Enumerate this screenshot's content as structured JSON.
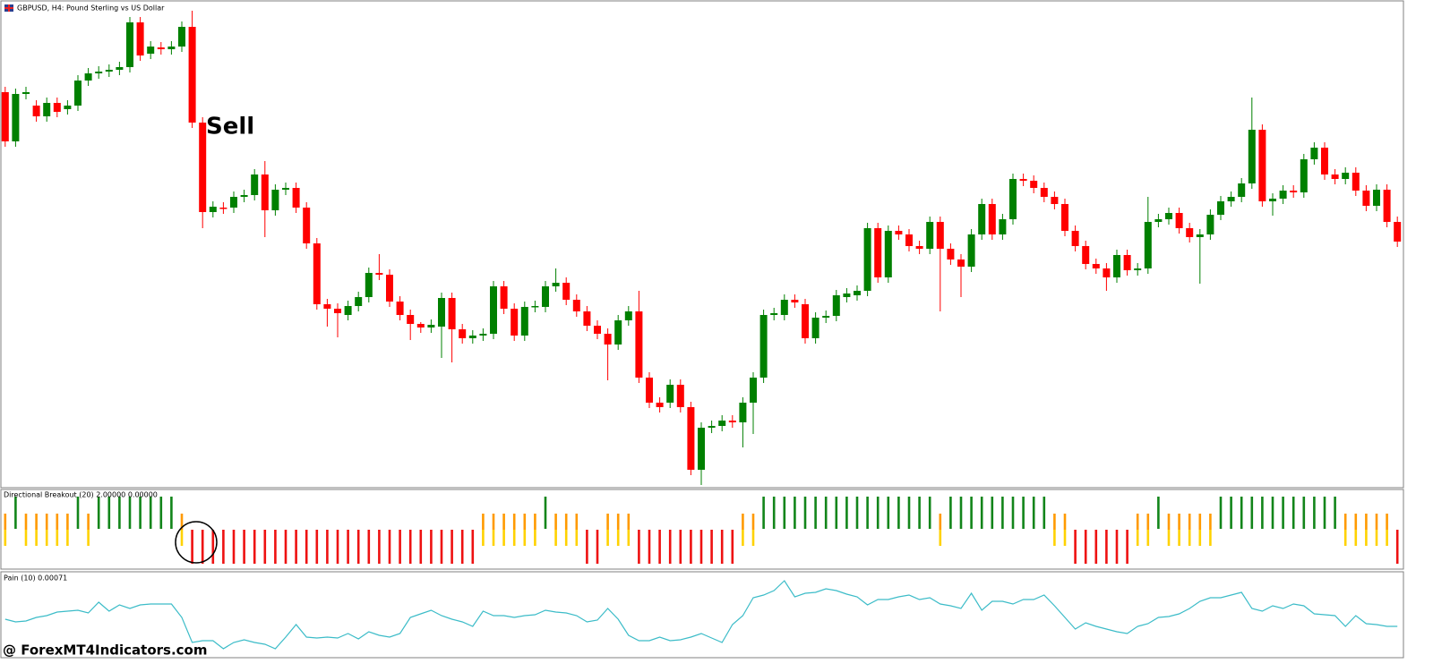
{
  "chart_data": [
    {
      "type": "candlestick",
      "title": "GBPUSD, H4:  Pound Sterling vs US Dollar",
      "annotation": "Sell",
      "up_color": "#008000",
      "down_color": "#ff0000",
      "ylim": [
        0,
        543
      ],
      "open": [
        442,
        387,
        440,
        427,
        415,
        430,
        423,
        427,
        455,
        463,
        465,
        467,
        470,
        520,
        485,
        492,
        490,
        493,
        515,
        408,
        308,
        313,
        313,
        325,
        327,
        350,
        310,
        333,
        335,
        313,
        273,
        205,
        200,
        193,
        203,
        213,
        240,
        238,
        208,
        193,
        183,
        179,
        180,
        212,
        177,
        167,
        170,
        172,
        225,
        200,
        170,
        202,
        202,
        225,
        229,
        210,
        197,
        181,
        172,
        160,
        187,
        197,
        123,
        95,
        95,
        115,
        90,
        20,
        67,
        69,
        75,
        73,
        95,
        123,
        193,
        193,
        210,
        205,
        167,
        190,
        192,
        213,
        215,
        220,
        290,
        235,
        287,
        283,
        270,
        267,
        297,
        267,
        255,
        247,
        283,
        317,
        283,
        300,
        345,
        343,
        335,
        325,
        317,
        287,
        270,
        250,
        245,
        235,
        260,
        243,
        245,
        297,
        300,
        307,
        290,
        280,
        283,
        305,
        320,
        325,
        340,
        400,
        320,
        323,
        332,
        330,
        367,
        380,
        350,
        345,
        352,
        332,
        315,
        333,
        297
      ],
      "high": [
        448,
        446,
        448,
        433,
        436,
        436,
        433,
        461,
        469,
        471,
        473,
        476,
        526,
        526,
        499,
        498,
        499,
        521,
        533,
        414,
        320,
        319,
        331,
        333,
        356,
        365,
        339,
        341,
        341,
        319,
        279,
        211,
        206,
        209,
        219,
        246,
        261,
        244,
        214,
        199,
        185,
        188,
        218,
        218,
        183,
        176,
        178,
        231,
        231,
        206,
        208,
        209,
        231,
        245,
        235,
        216,
        203,
        187,
        178,
        193,
        203,
        220,
        129,
        101,
        121,
        121,
        96,
        73,
        75,
        81,
        81,
        101,
        129,
        199,
        201,
        216,
        216,
        211,
        196,
        198,
        221,
        223,
        226,
        296,
        296,
        293,
        293,
        289,
        276,
        303,
        303,
        273,
        261,
        289,
        323,
        323,
        306,
        351,
        351,
        349,
        341,
        331,
        323,
        293,
        276,
        256,
        251,
        266,
        266,
        251,
        325,
        306,
        313,
        313,
        296,
        289,
        311,
        326,
        331,
        346,
        436,
        406,
        329,
        338,
        338,
        373,
        386,
        386,
        356,
        358,
        358,
        338,
        339,
        339,
        303
      ],
      "low": [
        381,
        381,
        434,
        409,
        409,
        414,
        417,
        421,
        449,
        457,
        459,
        461,
        464,
        477,
        479,
        484,
        484,
        487,
        402,
        290,
        302,
        306,
        307,
        319,
        321,
        280,
        304,
        327,
        307,
        267,
        199,
        180,
        168,
        187,
        197,
        207,
        232,
        202,
        187,
        165,
        173,
        173,
        145,
        140,
        161,
        161,
        164,
        166,
        194,
        164,
        164,
        196,
        196,
        219,
        204,
        191,
        175,
        166,
        120,
        154,
        181,
        117,
        89,
        84,
        89,
        84,
        14,
        3,
        61,
        63,
        67,
        45,
        60,
        117,
        187,
        187,
        201,
        161,
        161,
        184,
        186,
        207,
        209,
        214,
        229,
        229,
        277,
        264,
        261,
        261,
        197,
        249,
        213,
        241,
        277,
        277,
        277,
        294,
        337,
        329,
        319,
        311,
        281,
        264,
        244,
        239,
        220,
        229,
        237,
        237,
        239,
        291,
        294,
        284,
        274,
        228,
        277,
        299,
        314,
        319,
        334,
        314,
        304,
        317,
        324,
        324,
        361,
        344,
        339,
        339,
        326,
        309,
        309,
        291,
        269
      ],
      "close": [
        387,
        440,
        442,
        415,
        430,
        420,
        427,
        455,
        463,
        465,
        467,
        470,
        520,
        483,
        493,
        490,
        493,
        515,
        408,
        308,
        314,
        312,
        325,
        327,
        350,
        310,
        333,
        335,
        313,
        273,
        205,
        200,
        195,
        203,
        213,
        240,
        238,
        208,
        193,
        183,
        179,
        182,
        212,
        177,
        167,
        170,
        172,
        225,
        200,
        170,
        202,
        203,
        225,
        229,
        210,
        197,
        181,
        172,
        160,
        187,
        197,
        123,
        95,
        90,
        115,
        90,
        20,
        67,
        69,
        75,
        73,
        95,
        123,
        193,
        195,
        210,
        207,
        167,
        190,
        192,
        215,
        217,
        220,
        290,
        235,
        287,
        283,
        270,
        267,
        297,
        267,
        255,
        247,
        283,
        317,
        283,
        300,
        345,
        343,
        335,
        325,
        317,
        287,
        270,
        250,
        245,
        235,
        260,
        243,
        245,
        297,
        300,
        307,
        290,
        280,
        283,
        305,
        320,
        325,
        340,
        400,
        320,
        323,
        332,
        330,
        367,
        380,
        350,
        345,
        352,
        332,
        315,
        333,
        297,
        275
      ]
    },
    {
      "type": "state_histogram",
      "title": "Directional Breakout (20) 2.00000 0.00000",
      "up_color": "#12851a",
      "neutral_colors": [
        "#ff9a00",
        "#ffd200"
      ],
      "down_color": "#ee1111",
      "values": [
        0,
        1,
        0,
        0,
        0,
        0,
        0,
        1,
        0,
        1,
        1,
        1,
        1,
        1,
        1,
        1,
        1,
        0,
        -1,
        -1,
        -1,
        -1,
        -1,
        -1,
        -1,
        -1,
        -1,
        -1,
        -1,
        -1,
        -1,
        -1,
        -1,
        -1,
        -1,
        -1,
        -1,
        -1,
        -1,
        -1,
        -1,
        -1,
        -1,
        -1,
        -1,
        -1,
        0,
        0,
        0,
        0,
        0,
        0,
        1,
        0,
        0,
        0,
        -1,
        -1,
        0,
        0,
        0,
        -1,
        -1,
        -1,
        -1,
        -1,
        -1,
        -1,
        -1,
        -1,
        -1,
        0,
        0,
        1,
        1,
        1,
        1,
        1,
        1,
        1,
        1,
        1,
        1,
        1,
        1,
        1,
        1,
        1,
        1,
        1,
        0,
        1,
        1,
        1,
        1,
        1,
        1,
        1,
        1,
        1,
        1,
        0,
        0,
        -1,
        -1,
        -1,
        -1,
        -1,
        -1,
        0,
        0,
        1,
        0,
        0,
        0,
        0,
        0,
        1,
        1,
        1,
        1,
        1,
        1,
        1,
        1,
        1,
        1,
        1,
        1,
        0,
        0,
        0,
        0,
        0,
        -1
      ]
    },
    {
      "type": "line",
      "title": "Pain (10) 0.00071",
      "color": "#3cbcc8",
      "ylim": [
        0,
        95
      ],
      "values": [
        43,
        40,
        41,
        45,
        47,
        51,
        52,
        53,
        50,
        62,
        52,
        59,
        55,
        59,
        60,
        60,
        60,
        45,
        17,
        19,
        19,
        10,
        17,
        20,
        17,
        15,
        10,
        23,
        37,
        23,
        22,
        23,
        22,
        27,
        21,
        29,
        25,
        23,
        27,
        45,
        49,
        53,
        47,
        43,
        40,
        35,
        52,
        47,
        47,
        45,
        47,
        48,
        53,
        51,
        50,
        47,
        40,
        42,
        55,
        43,
        25,
        19,
        19,
        23,
        19,
        20,
        23,
        27,
        22,
        17,
        37,
        47,
        67,
        70,
        75,
        86,
        68,
        72,
        73,
        77,
        75,
        71,
        68,
        59,
        65,
        65,
        68,
        70,
        65,
        67,
        60,
        58,
        55,
        72,
        53,
        63,
        63,
        60,
        65,
        65,
        70,
        58,
        45,
        32,
        39,
        35,
        32,
        29,
        27,
        35,
        38,
        45,
        46,
        49,
        55,
        63,
        67,
        67,
        70,
        73,
        55,
        52,
        58,
        55,
        60,
        58,
        49,
        48,
        47,
        35,
        47,
        38,
        37,
        35,
        35
      ]
    }
  ],
  "watermark": "@ ForexMT4Indicators.com"
}
